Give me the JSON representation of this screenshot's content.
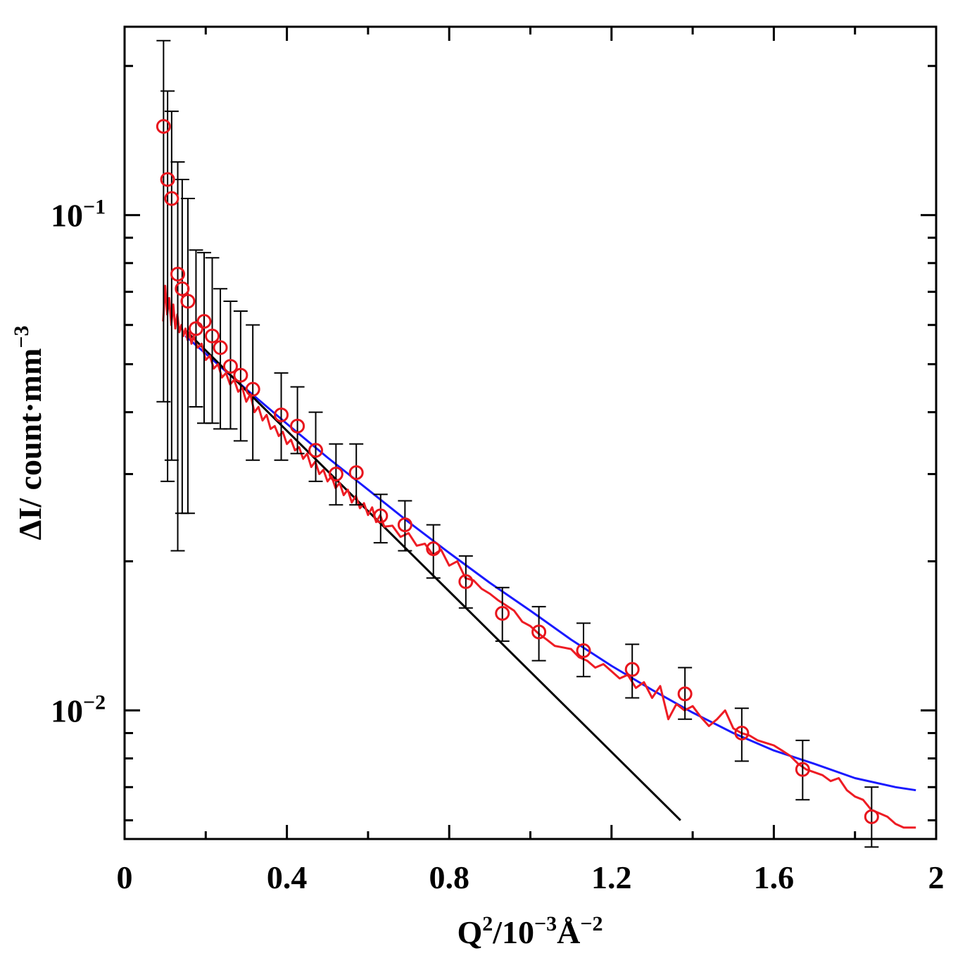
{
  "chart_data": {
    "type": "scatter",
    "xlabel": {
      "base": "Q",
      "sup1": "2",
      "mid": "/10",
      "sup2": "−3",
      "unit": "Å",
      "sup3": "−2"
    },
    "ylabel": {
      "base": "ΔI/ count·mm",
      "sup": "−3"
    },
    "xlim": [
      0,
      2.0
    ],
    "ylim": [
      0.0055,
      0.24
    ],
    "yscale": "log",
    "xticks": [
      0,
      0.4,
      0.8,
      1.2,
      1.6,
      2.0
    ],
    "xtick_labels": [
      "0",
      "0.4",
      "0.8",
      "1.2",
      "1.6",
      "2"
    ],
    "yticks": [
      0.01,
      0.1
    ],
    "ytick_labels": [
      {
        "base": "10",
        "sup": "−2"
      },
      {
        "base": "10",
        "sup": "−1"
      }
    ],
    "colors": {
      "points": "#e8141c",
      "simulation": "#ee1c24",
      "guinier": "#000000",
      "model": "#1a1aff",
      "errorbar": "#000000"
    },
    "series": [
      {
        "name": "measured",
        "kind": "points_with_errorbars",
        "x": [
          0.096,
          0.106,
          0.116,
          0.131,
          0.142,
          0.156,
          0.176,
          0.196,
          0.216,
          0.236,
          0.261,
          0.286,
          0.316,
          0.386,
          0.426,
          0.471,
          0.521,
          0.571,
          0.631,
          0.691,
          0.761,
          0.841,
          0.931,
          1.021,
          1.131,
          1.251,
          1.381,
          1.521,
          1.671,
          1.841
        ],
        "y": [
          0.151,
          0.118,
          0.108,
          0.076,
          0.071,
          0.067,
          0.059,
          0.061,
          0.057,
          0.054,
          0.0495,
          0.0475,
          0.0445,
          0.0395,
          0.0375,
          0.0335,
          0.03,
          0.0302,
          0.0247,
          0.0237,
          0.0212,
          0.0182,
          0.0157,
          0.0144,
          0.0132,
          0.0121,
          0.0108,
          0.009,
          0.0076,
          0.0061
        ],
        "err_low": [
          0.042,
          0.029,
          0.032,
          0.021,
          0.025,
          0.025,
          0.041,
          0.038,
          0.038,
          0.037,
          0.037,
          0.035,
          0.032,
          0.032,
          0.033,
          0.029,
          0.026,
          0.026,
          0.0218,
          0.021,
          0.0185,
          0.0161,
          0.0138,
          0.0126,
          0.0117,
          0.0106,
          0.0096,
          0.0079,
          0.0066,
          0.0053
        ],
        "err_high": [
          0.225,
          0.178,
          0.162,
          0.128,
          0.118,
          0.108,
          0.085,
          0.084,
          0.082,
          0.071,
          0.067,
          0.064,
          0.06,
          0.048,
          0.045,
          0.04,
          0.0345,
          0.0345,
          0.0273,
          0.0265,
          0.0237,
          0.0205,
          0.0177,
          0.0162,
          0.015,
          0.0136,
          0.0122,
          0.0101,
          0.0087,
          0.007
        ]
      },
      {
        "name": "simulation",
        "kind": "line",
        "x": [
          0.095,
          0.1,
          0.105,
          0.11,
          0.115,
          0.12,
          0.125,
          0.13,
          0.135,
          0.14,
          0.145,
          0.15,
          0.155,
          0.16,
          0.165,
          0.17,
          0.18,
          0.19,
          0.2,
          0.21,
          0.22,
          0.23,
          0.24,
          0.25,
          0.26,
          0.27,
          0.28,
          0.29,
          0.3,
          0.31,
          0.32,
          0.33,
          0.34,
          0.35,
          0.36,
          0.37,
          0.38,
          0.39,
          0.4,
          0.41,
          0.42,
          0.43,
          0.44,
          0.45,
          0.46,
          0.47,
          0.48,
          0.49,
          0.5,
          0.51,
          0.52,
          0.53,
          0.54,
          0.55,
          0.56,
          0.57,
          0.58,
          0.59,
          0.6,
          0.61,
          0.62,
          0.63,
          0.64,
          0.66,
          0.68,
          0.7,
          0.72,
          0.74,
          0.76,
          0.78,
          0.8,
          0.82,
          0.84,
          0.86,
          0.88,
          0.9,
          0.92,
          0.94,
          0.96,
          0.98,
          1.0,
          1.02,
          1.04,
          1.06,
          1.08,
          1.1,
          1.12,
          1.14,
          1.16,
          1.18,
          1.2,
          1.22,
          1.24,
          1.26,
          1.28,
          1.3,
          1.32,
          1.34,
          1.36,
          1.38,
          1.4,
          1.42,
          1.44,
          1.46,
          1.48,
          1.5,
          1.52,
          1.54,
          1.56,
          1.58,
          1.6,
          1.62,
          1.64,
          1.66,
          1.68,
          1.7,
          1.72,
          1.74,
          1.76,
          1.78,
          1.8,
          1.82,
          1.84,
          1.86,
          1.88,
          1.9,
          1.92,
          1.95
        ],
        "y": [
          0.061,
          0.072,
          0.063,
          0.068,
          0.06,
          0.066,
          0.059,
          0.063,
          0.058,
          0.06,
          0.057,
          0.059,
          0.056,
          0.058,
          0.055,
          0.057,
          0.054,
          0.055,
          0.051,
          0.052,
          0.049,
          0.05,
          0.047,
          0.048,
          0.0455,
          0.0465,
          0.044,
          0.0448,
          0.042,
          0.0435,
          0.04,
          0.041,
          0.0385,
          0.0395,
          0.037,
          0.0375,
          0.0358,
          0.0365,
          0.0345,
          0.0352,
          0.0335,
          0.034,
          0.0322,
          0.033,
          0.031,
          0.0318,
          0.03,
          0.0306,
          0.029,
          0.0297,
          0.0281,
          0.0288,
          0.0272,
          0.0279,
          0.0263,
          0.0271,
          0.0256,
          0.0262,
          0.0248,
          0.0257,
          0.024,
          0.0248,
          0.0235,
          0.0236,
          0.0224,
          0.0228,
          0.0215,
          0.0217,
          0.0206,
          0.0211,
          0.0196,
          0.02,
          0.0185,
          0.0183,
          0.0176,
          0.0172,
          0.0167,
          0.0163,
          0.0159,
          0.0151,
          0.0148,
          0.0143,
          0.0139,
          0.0135,
          0.0134,
          0.0133,
          0.0128,
          0.0126,
          0.0122,
          0.0124,
          0.012,
          0.0116,
          0.0118,
          0.0111,
          0.0114,
          0.0106,
          0.0112,
          0.0096,
          0.0103,
          0.01,
          0.0102,
          0.0097,
          0.0093,
          0.0096,
          0.01,
          0.0092,
          0.009,
          0.0089,
          0.0087,
          0.0086,
          0.0085,
          0.0083,
          0.0081,
          0.0078,
          0.0076,
          0.0075,
          0.0074,
          0.0072,
          0.0073,
          0.0069,
          0.0067,
          0.0066,
          0.0063,
          0.0062,
          0.0061,
          0.0059,
          0.0058,
          0.0058
        ]
      },
      {
        "name": "guinier_fit",
        "kind": "line",
        "x": [
          0.15,
          1.37
        ],
        "y": [
          0.0585,
          0.006
        ]
      },
      {
        "name": "model_fit",
        "kind": "line",
        "x": [
          0.15,
          0.2,
          0.3,
          0.4,
          0.5,
          0.6,
          0.7,
          0.8,
          0.9,
          1.0,
          1.1,
          1.2,
          1.3,
          1.4,
          1.5,
          1.6,
          1.7,
          1.8,
          1.9,
          1.95
        ],
        "y": [
          0.057,
          0.0525,
          0.0445,
          0.0379,
          0.0324,
          0.0279,
          0.024,
          0.0208,
          0.0181,
          0.0159,
          0.0139,
          0.0123,
          0.011,
          0.0099,
          0.009,
          0.0083,
          0.0078,
          0.0073,
          0.007,
          0.0069
        ]
      }
    ]
  }
}
